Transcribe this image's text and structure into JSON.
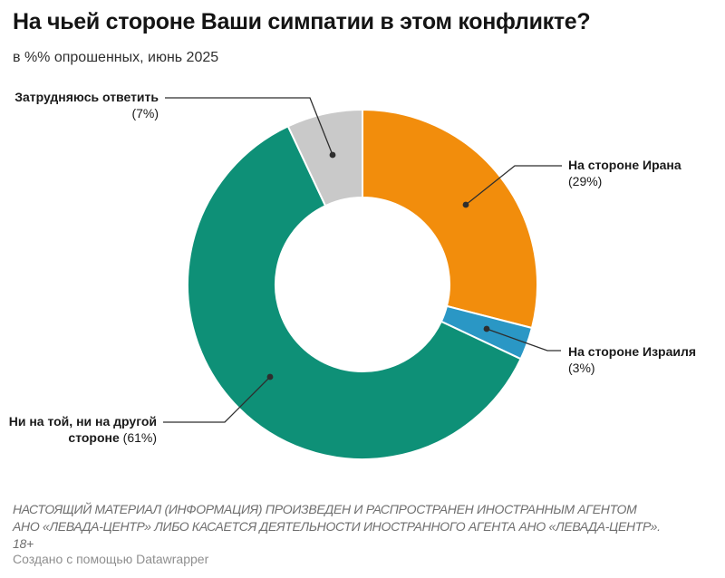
{
  "header": {
    "title": "На чьей стороне Ваши симпатии в этом конфликте?",
    "subtitle": "в %% опрошенных, июнь 2025"
  },
  "chart_data": {
    "type": "pie",
    "subtype": "donut",
    "title": "На чьей стороне Ваши симпатии в этом конфликте?",
    "subtitle": "в %% опрошенных, июнь 2025",
    "units": "percent of respondents",
    "start_angle_deg": 0,
    "direction": "clockwise",
    "inner_radius_ratio": 0.5,
    "slice_gap_color": "#ffffff",
    "slices": [
      {
        "label": "На стороне Ирана",
        "value": 29,
        "color": "#F28D0C"
      },
      {
        "label": "На стороне Израиля",
        "value": 3,
        "color": "#2A97C5"
      },
      {
        "label": "Ни на той, ни на другой стороне",
        "value": 61,
        "color": "#0E9077"
      },
      {
        "label": "Затрудняюсь ответить",
        "value": 7,
        "color": "#C9C9C9"
      }
    ],
    "callouts": {
      "iran": {
        "line1": "На стороне Ирана",
        "line2": "(29%)"
      },
      "israel": {
        "line1": "На стороне Израиля",
        "line2": "(3%)"
      },
      "neither": {
        "line1": "Ни на той, ни на другой",
        "line2_name": "стороне",
        "line2_pct": " (61%)"
      },
      "dk": {
        "line1": "Затрудняюсь ответить",
        "line2": "(7%)"
      }
    },
    "leader_line_color": "#2e2e2e"
  },
  "footer": {
    "disclaimer": "НАСТОЯЩИЙ МАТЕРИАЛ (ИНФОРМАЦИЯ) ПРОИЗВЕДЕН И РАСПРОСТРАНЕН ИНОСТРАННЫМ АГЕНТОМ\nАНО «ЛЕВАДА-ЦЕНТР» ЛИБО КАСАЕТСЯ ДЕЯТЕЛЬНОСТИ ИНОСТРАННОГО АГЕНТА АНО «ЛЕВАДА-ЦЕНТР».\n18+",
    "credit": "Создано с помощью Datawrapper"
  }
}
